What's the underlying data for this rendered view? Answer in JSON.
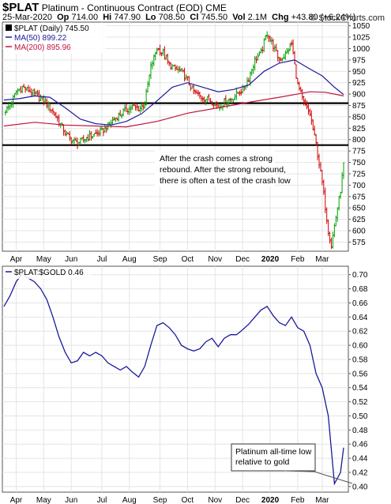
{
  "header": {
    "symbol": "$PLAT",
    "description": "Platinum - Continuous Contract (EOD)",
    "exchange": "CME",
    "date": "25-Mar-2020",
    "op_label": "Op",
    "op": "714.00",
    "hi_label": "Hi",
    "hi": "747.90",
    "lo_label": "Lo",
    "lo": "708.50",
    "cl_label": "Cl",
    "cl": "745.50",
    "vol_label": "Vol",
    "vol": "2.1M",
    "chg_label": "Chg",
    "chg": "+43.80 (+6.24%)",
    "brand": "© StockCharts.com"
  },
  "colors": {
    "up": "#00a000",
    "down": "#d00000",
    "ma50": "#1a1a9c",
    "ma200": "#c0143c",
    "ratio": "#1a1a9c",
    "support": "#000000"
  },
  "chart_data": [
    {
      "type": "line",
      "title": "$PLAT (Daily) 745.50",
      "legend": [
        "$PLAT (Daily) 745.50",
        "MA(50) 899.22",
        "MA(200) 895.96"
      ],
      "legend_placement": "top-left",
      "ylim": [
        555,
        1058
      ],
      "yticks": [
        575,
        600,
        625,
        650,
        675,
        700,
        725,
        750,
        775,
        800,
        825,
        850,
        875,
        900,
        925,
        950,
        975,
        1000,
        1025,
        1050
      ],
      "xlabels": [
        "Apr",
        "May",
        "Jun",
        "Jul",
        "Aug",
        "Sep",
        "Oct",
        "Nov",
        "Dec",
        "2020",
        "Feb",
        "Mar"
      ],
      "horizontal_lines": [
        880,
        788
      ],
      "annotation": [
        "After the crash comes a strong",
        "rebound. After the strong rebound,",
        "there is often a test of the crash low"
      ],
      "price_points": [
        [
          0,
          860
        ],
        [
          2,
          875
        ],
        [
          4,
          905
        ],
        [
          6,
          915
        ],
        [
          8,
          908
        ],
        [
          10,
          900
        ],
        [
          12,
          890
        ],
        [
          14,
          880
        ],
        [
          16,
          862
        ],
        [
          18,
          840
        ],
        [
          20,
          815
        ],
        [
          22,
          800
        ],
        [
          24,
          792
        ],
        [
          26,
          800
        ],
        [
          28,
          808
        ],
        [
          30,
          812
        ],
        [
          32,
          818
        ],
        [
          34,
          830
        ],
        [
          36,
          845
        ],
        [
          38,
          855
        ],
        [
          40,
          865
        ],
        [
          42,
          872
        ],
        [
          44,
          868
        ],
        [
          46,
          880
        ],
        [
          48,
          960
        ],
        [
          50,
          1000
        ],
        [
          52,
          990
        ],
        [
          54,
          965
        ],
        [
          56,
          955
        ],
        [
          58,
          950
        ],
        [
          60,
          930
        ],
        [
          62,
          905
        ],
        [
          64,
          895
        ],
        [
          66,
          890
        ],
        [
          68,
          885
        ],
        [
          70,
          872
        ],
        [
          72,
          882
        ],
        [
          74,
          888
        ],
        [
          76,
          900
        ],
        [
          78,
          910
        ],
        [
          80,
          935
        ],
        [
          82,
          975
        ],
        [
          84,
          990
        ],
        [
          86,
          1035
        ],
        [
          88,
          1005
        ],
        [
          90,
          975
        ],
        [
          92,
          988
        ],
        [
          94,
          1010
        ],
        [
          96,
          920
        ],
        [
          98,
          880
        ],
        [
          100,
          855
        ],
        [
          102,
          790
        ],
        [
          104,
          705
        ],
        [
          106,
          600
        ],
        [
          107,
          568
        ],
        [
          108,
          610
        ],
        [
          110,
          690
        ],
        [
          111,
          745
        ]
      ],
      "ma50_points": [
        [
          0,
          887
        ],
        [
          5,
          890
        ],
        [
          10,
          896
        ],
        [
          15,
          893
        ],
        [
          20,
          870
        ],
        [
          25,
          845
        ],
        [
          30,
          835
        ],
        [
          35,
          832
        ],
        [
          40,
          840
        ],
        [
          45,
          857
        ],
        [
          50,
          885
        ],
        [
          55,
          915
        ],
        [
          60,
          925
        ],
        [
          65,
          915
        ],
        [
          70,
          905
        ],
        [
          75,
          910
        ],
        [
          80,
          920
        ],
        [
          85,
          950
        ],
        [
          90,
          968
        ],
        [
          95,
          975
        ],
        [
          100,
          955
        ],
        [
          104,
          940
        ],
        [
          108,
          915
        ],
        [
          111,
          899
        ]
      ],
      "ma200_points": [
        [
          0,
          830
        ],
        [
          10,
          838
        ],
        [
          20,
          832
        ],
        [
          30,
          830
        ],
        [
          40,
          828
        ],
        [
          50,
          840
        ],
        [
          60,
          858
        ],
        [
          70,
          870
        ],
        [
          80,
          882
        ],
        [
          90,
          893
        ],
        [
          100,
          905
        ],
        [
          105,
          904
        ],
        [
          111,
          896
        ]
      ]
    },
    {
      "type": "line",
      "title": "$PLAT:$GOLD 0.46",
      "legend": [
        "$PLAT:$GOLD 0.46"
      ],
      "legend_placement": "top-left",
      "ylim": [
        0.392,
        0.712
      ],
      "yticks": [
        0.4,
        0.42,
        0.44,
        0.46,
        0.48,
        0.5,
        0.52,
        0.54,
        0.56,
        0.58,
        0.6,
        0.62,
        0.64,
        0.66,
        0.68,
        0.7
      ],
      "xlabels": [
        "Apr",
        "May",
        "Jun",
        "Jul",
        "Aug",
        "Sep",
        "Oct",
        "Nov",
        "Dec",
        "2020",
        "Feb",
        "Mar"
      ],
      "annotation": [
        "Platinum all-time low",
        "relative to gold"
      ],
      "ratio_points": [
        [
          0,
          0.655
        ],
        [
          2,
          0.67
        ],
        [
          4,
          0.69
        ],
        [
          6,
          0.702
        ],
        [
          8,
          0.695
        ],
        [
          10,
          0.69
        ],
        [
          12,
          0.68
        ],
        [
          14,
          0.665
        ],
        [
          16,
          0.64
        ],
        [
          18,
          0.612
        ],
        [
          20,
          0.59
        ],
        [
          22,
          0.575
        ],
        [
          24,
          0.578
        ],
        [
          26,
          0.59
        ],
        [
          28,
          0.585
        ],
        [
          30,
          0.59
        ],
        [
          32,
          0.585
        ],
        [
          34,
          0.575
        ],
        [
          36,
          0.57
        ],
        [
          38,
          0.565
        ],
        [
          40,
          0.57
        ],
        [
          42,
          0.562
        ],
        [
          44,
          0.555
        ],
        [
          46,
          0.57
        ],
        [
          48,
          0.6
        ],
        [
          50,
          0.628
        ],
        [
          52,
          0.632
        ],
        [
          54,
          0.625
        ],
        [
          56,
          0.615
        ],
        [
          58,
          0.6
        ],
        [
          60,
          0.595
        ],
        [
          62,
          0.592
        ],
        [
          64,
          0.595
        ],
        [
          66,
          0.605
        ],
        [
          68,
          0.61
        ],
        [
          70,
          0.598
        ],
        [
          72,
          0.61
        ],
        [
          74,
          0.615
        ],
        [
          76,
          0.615
        ],
        [
          78,
          0.622
        ],
        [
          80,
          0.63
        ],
        [
          82,
          0.64
        ],
        [
          84,
          0.65
        ],
        [
          86,
          0.655
        ],
        [
          88,
          0.642
        ],
        [
          90,
          0.632
        ],
        [
          92,
          0.628
        ],
        [
          94,
          0.64
        ],
        [
          96,
          0.625
        ],
        [
          98,
          0.62
        ],
        [
          100,
          0.6
        ],
        [
          102,
          0.56
        ],
        [
          104,
          0.54
        ],
        [
          106,
          0.5
        ],
        [
          108,
          0.404
        ],
        [
          110,
          0.42
        ],
        [
          111,
          0.455
        ]
      ]
    }
  ]
}
